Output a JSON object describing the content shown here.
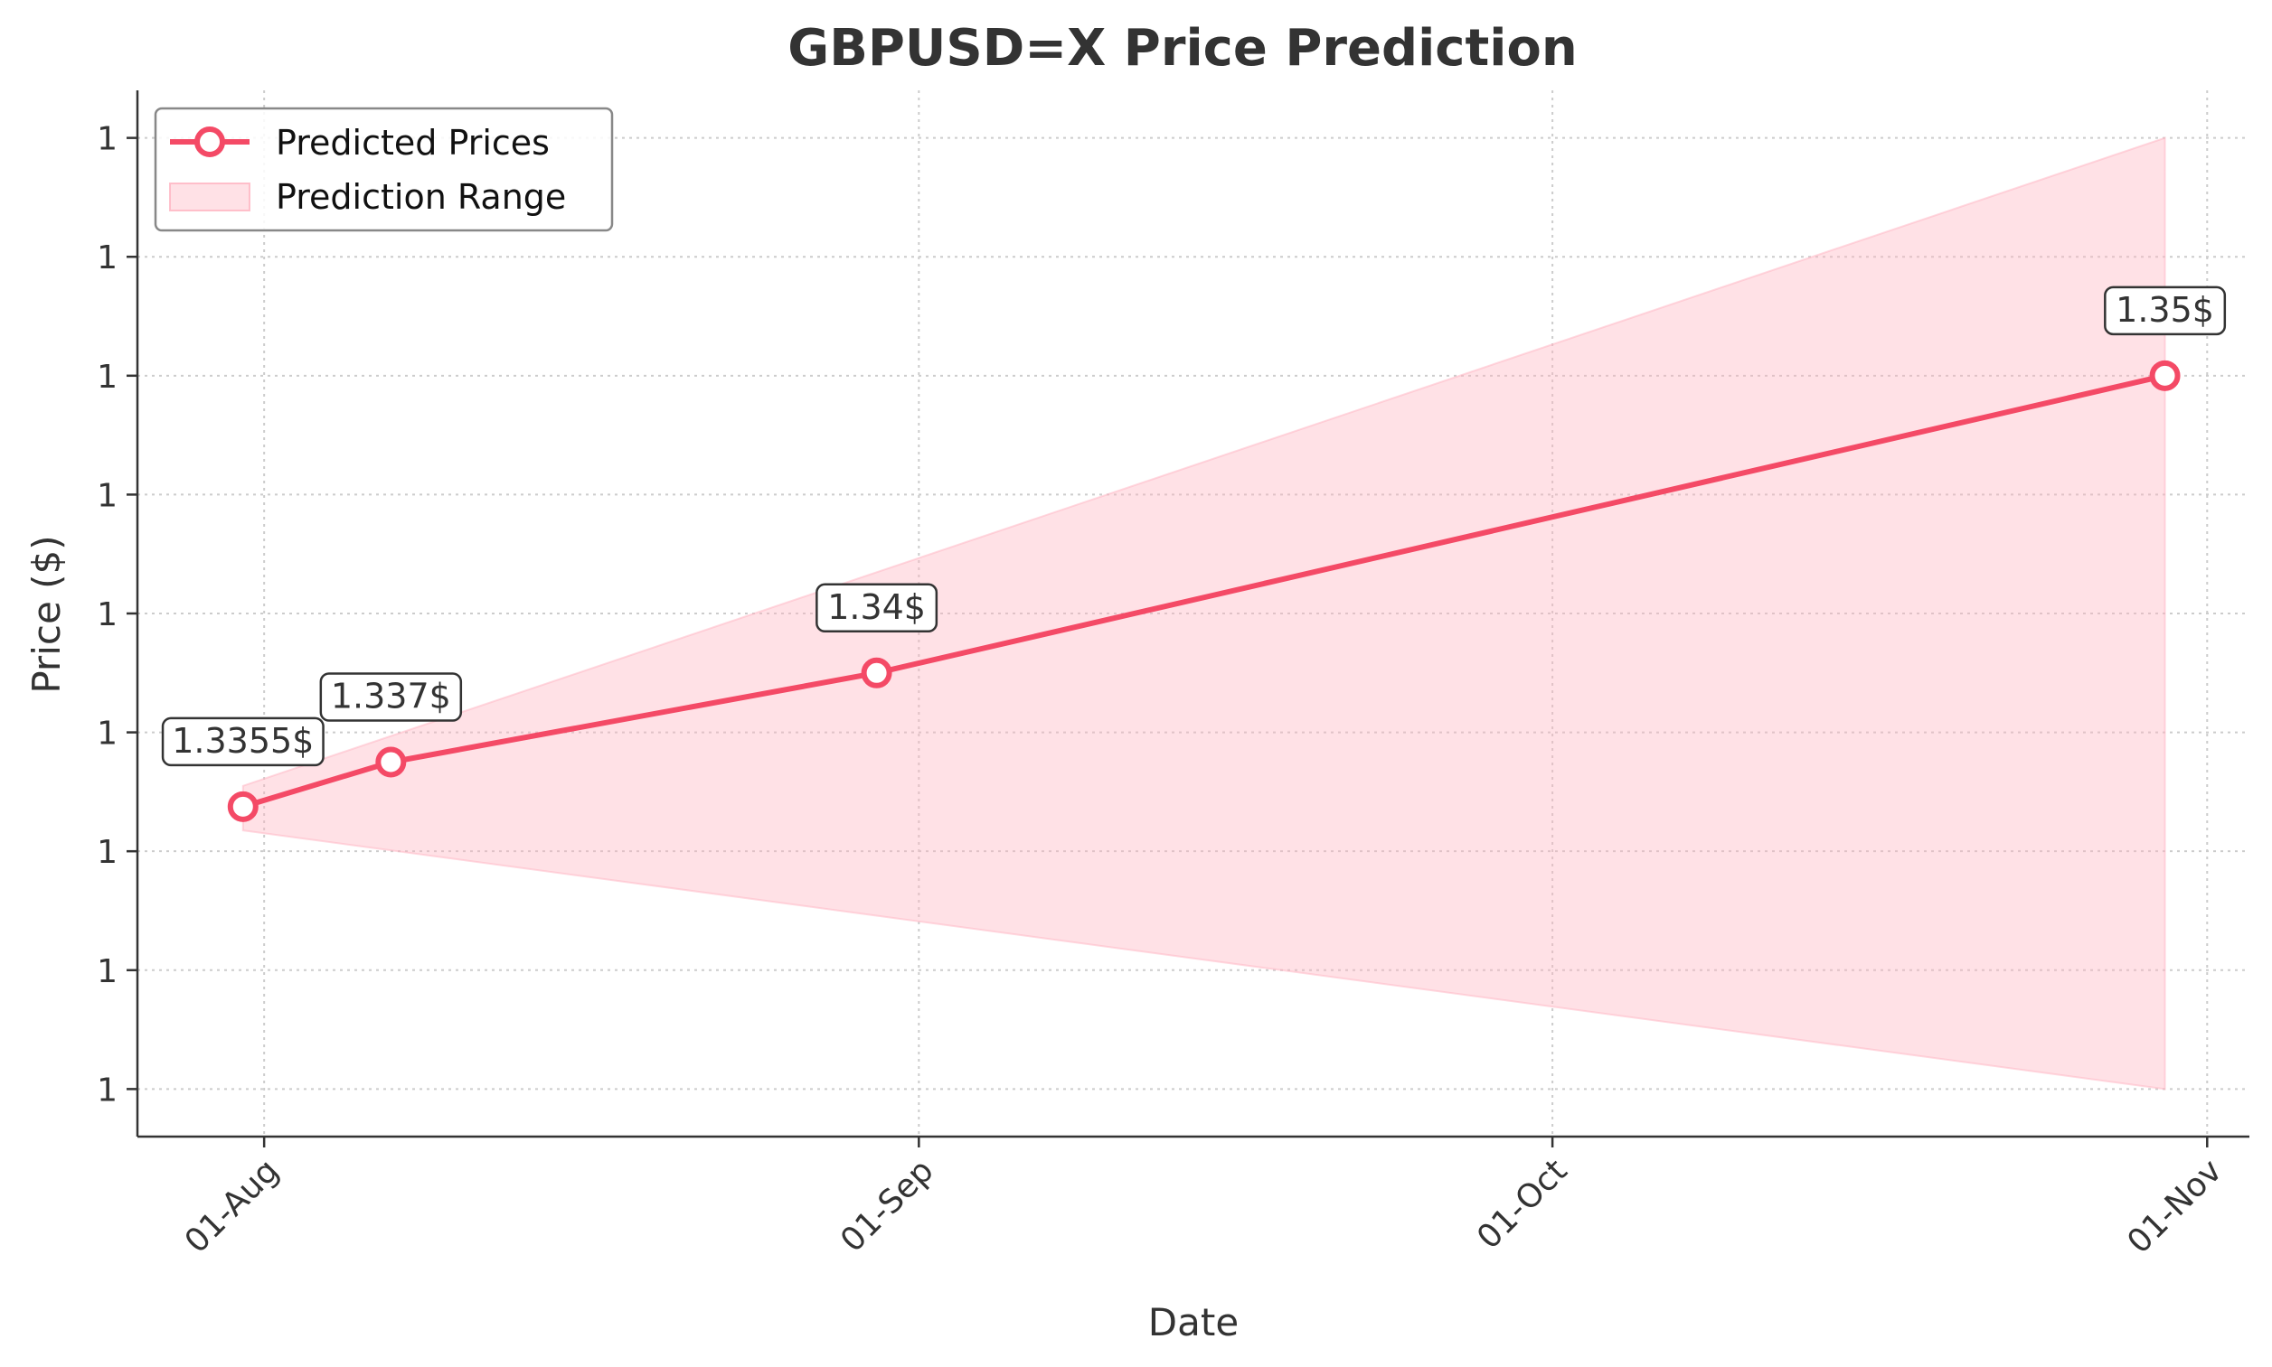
{
  "chart_data": {
    "type": "line",
    "title": "GBPUSD=X Price Prediction",
    "xlabel": "Date",
    "ylabel": "Price ($)",
    "x_ticks": [
      {
        "date": "2025-08-01",
        "label": "01-Aug"
      },
      {
        "date": "2025-09-01",
        "label": "01-Sep"
      },
      {
        "date": "2025-10-01",
        "label": "01-Oct"
      },
      {
        "date": "2025-11-01",
        "label": "01-Nov"
      }
    ],
    "xlim": [
      "2025-07-26",
      "2025-11-03"
    ],
    "y_ticks": [
      {
        "value": 1.326,
        "label": "1"
      },
      {
        "value": 1.33,
        "label": "1"
      },
      {
        "value": 1.334,
        "label": "1"
      },
      {
        "value": 1.338,
        "label": "1"
      },
      {
        "value": 1.342,
        "label": "1"
      },
      {
        "value": 1.346,
        "label": "1"
      },
      {
        "value": 1.35,
        "label": "1"
      },
      {
        "value": 1.354,
        "label": "1"
      },
      {
        "value": 1.358,
        "label": "1"
      }
    ],
    "ylim": [
      1.3244,
      1.3596
    ],
    "grid": true,
    "legend_position": "top-left",
    "series": [
      {
        "name": "Predicted Prices",
        "color": "#f44a66",
        "x": [
          "2025-07-31",
          "2025-08-07",
          "2025-08-30",
          "2025-10-30"
        ],
        "y": [
          1.3355,
          1.337,
          1.34,
          1.35
        ],
        "labels": [
          "1.3355$",
          "1.337$",
          "1.34$",
          "1.35$"
        ]
      }
    ],
    "range": {
      "name": "Prediction Range",
      "color": "#ffb3c1",
      "x": [
        "2025-07-31",
        "2025-10-30"
      ],
      "lower": [
        1.3347,
        1.326
      ],
      "upper": [
        1.3362,
        1.358
      ]
    }
  }
}
